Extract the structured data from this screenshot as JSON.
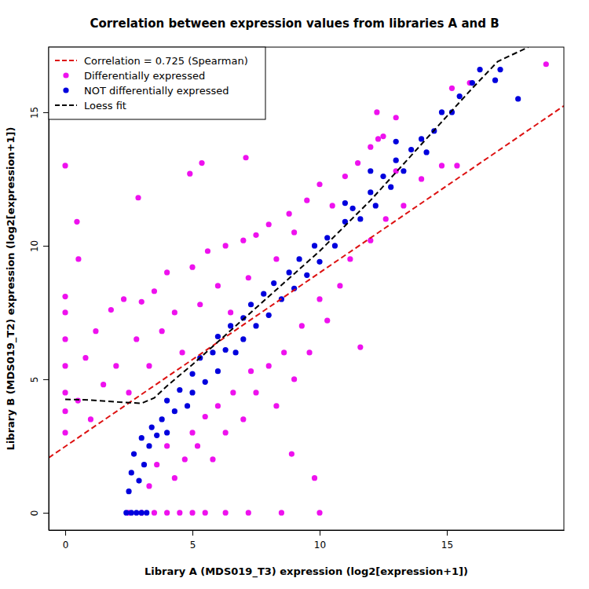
{
  "chart_data": {
    "type": "scatter",
    "title": "Correlation between expression values from libraries A and B",
    "x_label": "Library A (MDS019_T3) expression (log2[expression+1])",
    "y_label": "Library B (MDS019_T2) expression (log2[expression+1])",
    "xlim": [
      -0.65,
      19.6
    ],
    "ylim": [
      -0.65,
      17.44
    ],
    "xticks": [
      0,
      5,
      10,
      15
    ],
    "yticks": [
      0,
      5,
      10,
      15
    ],
    "grid": false,
    "legend": "top-left",
    "series": [
      {
        "name": "Correlation = 0.725 (Spearman)",
        "type": "line",
        "line_style": "dashed",
        "color": "#dd1111",
        "x": [
          -0.65,
          19.6
        ],
        "values": [
          2.06,
          15.24
        ]
      },
      {
        "name": "Differentially expressed",
        "type": "scatter",
        "marker": "circle",
        "color": "#ee11ee",
        "x": [
          0,
          0,
          0,
          0,
          0,
          0,
          0,
          0,
          0.46,
          0.52,
          2.87,
          5.37,
          7.1,
          4.9,
          0.5,
          0.8,
          1,
          1.2,
          1.5,
          1.8,
          2,
          2.3,
          2.5,
          2.8,
          3,
          3.3,
          3.5,
          3.8,
          4,
          4.3,
          4.6,
          5,
          5.3,
          5.6,
          6,
          6.3,
          6.5,
          7,
          7.2,
          7.5,
          8,
          8.3,
          8.8,
          9,
          9.5,
          10,
          10.5,
          11,
          11.5,
          12,
          12.5,
          13,
          12.3,
          12.25,
          15.2,
          15.9,
          18.9,
          2.5,
          3,
          3.5,
          4,
          4.5,
          5,
          5.5,
          6.3,
          7.2,
          8.5,
          10,
          3.3,
          3.6,
          4,
          4.3,
          4.7,
          5,
          5.2,
          5.5,
          5.8,
          6,
          6.3,
          6.6,
          7,
          7.3,
          7.5,
          8,
          8.3,
          8.6,
          9,
          9.3,
          9.6,
          10,
          10.3,
          10.8,
          11.6,
          11.2,
          12,
          12.6,
          13.3,
          14,
          14.8,
          15.4,
          8.9,
          9.8,
          13
        ],
        "values": [
          3,
          3.8,
          4.5,
          5.5,
          6.5,
          7.5,
          8.1,
          13,
          10.9,
          9.5,
          11.8,
          13.1,
          13.3,
          12.7,
          4.2,
          5.8,
          3.5,
          6.8,
          4.8,
          7.6,
          5.5,
          8,
          4.5,
          6.5,
          7.9,
          5.5,
          8.3,
          6.8,
          9,
          7.5,
          6,
          9.2,
          7.8,
          9.8,
          8.5,
          10,
          7.5,
          10.2,
          8.8,
          10.4,
          10.8,
          9.5,
          11.2,
          10.5,
          11.7,
          12.3,
          11.5,
          12.6,
          13.1,
          13.7,
          14.1,
          14.8,
          14,
          15,
          15.9,
          16.1,
          16.8,
          0,
          0,
          0,
          0,
          0,
          0,
          0,
          0,
          0,
          0,
          0,
          1,
          1.8,
          2.5,
          1.3,
          2,
          3,
          2.5,
          3.6,
          2,
          4,
          3,
          4.5,
          3.5,
          5.3,
          4.5,
          5.5,
          4,
          6,
          5,
          7,
          6,
          8,
          7.2,
          8.5,
          6.2,
          9.5,
          10.2,
          11,
          11.5,
          12.5,
          13,
          13,
          2.2,
          1.3,
          12.8
        ]
      },
      {
        "name": "NOT differentially expressed",
        "type": "scatter",
        "marker": "circle",
        "color": "#0000dd",
        "x": [
          2.4,
          2.6,
          2.8,
          3,
          3.2,
          2.5,
          2.6,
          2.7,
          2.9,
          3,
          3.1,
          3.3,
          3.4,
          3.6,
          3.8,
          4,
          4,
          4.3,
          4.5,
          4.8,
          5,
          5,
          5.3,
          5.5,
          5.8,
          6,
          6,
          6.3,
          6.5,
          6.7,
          7,
          7,
          7.3,
          7.5,
          7.8,
          8,
          8.2,
          8.5,
          8.8,
          9,
          9.2,
          9.5,
          9.8,
          10,
          10.3,
          10.6,
          11,
          11.3,
          11.6,
          12,
          12.2,
          12.5,
          12.8,
          13,
          13.3,
          13.6,
          14,
          14.2,
          14.5,
          14.8,
          15.2,
          15.5,
          16,
          16.3,
          16.9,
          13,
          12,
          11,
          17.8,
          17.1
        ],
        "values": [
          0,
          0,
          0,
          0,
          0,
          0.8,
          1.5,
          2.2,
          1.2,
          2.8,
          1.8,
          2.5,
          3.2,
          2.9,
          3.5,
          3,
          4.2,
          3.8,
          4.6,
          4,
          5.2,
          4.5,
          5.8,
          4.9,
          6,
          5.3,
          6.6,
          6.1,
          7,
          6,
          7.3,
          6.5,
          7.8,
          7,
          8.2,
          7.4,
          8.6,
          8,
          9,
          8.4,
          9.5,
          8.9,
          10,
          9.4,
          10.3,
          10,
          10.9,
          11.4,
          11,
          12,
          11.5,
          12.6,
          12.2,
          13.2,
          12.8,
          13.6,
          14,
          13.5,
          14.3,
          15,
          15,
          15.6,
          16.1,
          16.6,
          16.2,
          13.9,
          12.8,
          11.6,
          15.5,
          16.6
        ]
      },
      {
        "name": "Loess fit",
        "type": "line",
        "line_style": "dashed",
        "color": "#000000",
        "x": [
          0,
          1,
          2,
          3,
          3.5,
          4,
          5,
          6,
          7,
          8,
          9,
          10,
          11,
          12,
          13,
          14,
          15,
          16,
          17,
          18.2
        ],
        "values": [
          4.25,
          4.22,
          4.15,
          4.1,
          4.3,
          4.75,
          5.55,
          6.4,
          7.25,
          8.1,
          8.95,
          9.8,
          10.75,
          11.7,
          12.75,
          13.8,
          14.85,
          15.9,
          16.9,
          17.44
        ]
      }
    ]
  }
}
